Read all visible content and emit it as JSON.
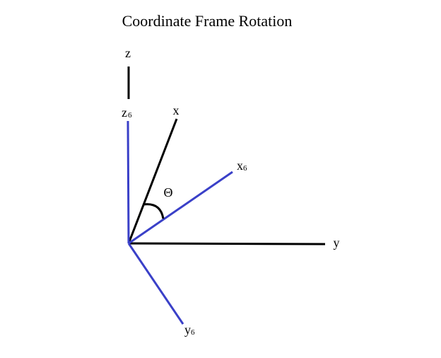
{
  "title": "Coordinate Frame Rotation",
  "labels": {
    "z": "z",
    "x": "x",
    "y": "y",
    "theta": "Θ",
    "z6_base": "z",
    "z6_sub": "6",
    "x6_base": "x",
    "x6_sub": "6",
    "y6_base": "y",
    "y6_sub": "6"
  },
  "colors": {
    "reference_frame": "#000000",
    "rotated_frame": "#3a40c8",
    "background": "#ffffff"
  }
}
